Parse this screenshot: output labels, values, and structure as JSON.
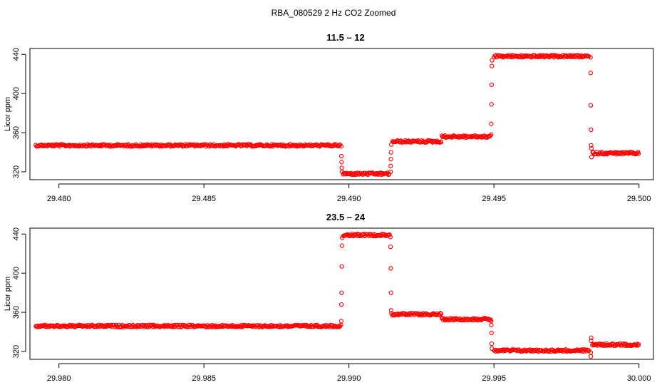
{
  "figure": {
    "title": "RBA_080529  2 Hz CO2 Zoomed"
  },
  "colors": {
    "points": "#ff0000",
    "axis": "#000000",
    "background": "#ffffff"
  },
  "chart_data": [
    {
      "type": "scatter",
      "title": "11.5 – 12",
      "xlabel": "",
      "ylabel": "Licor ppm",
      "xlim": [
        29.479,
        29.5005
      ],
      "ylim": [
        312,
        446
      ],
      "x_ticks": [
        29.48,
        29.485,
        29.49,
        29.495,
        29.5
      ],
      "x_tick_labels": [
        "29.480",
        "29.485",
        "29.490",
        "29.495",
        "29.500"
      ],
      "y_ticks": [
        320,
        360,
        400,
        440
      ],
      "y_tick_labels": [
        "320",
        "360",
        "400",
        "440"
      ],
      "grid": false,
      "marker": "open-circle",
      "series": [
        {
          "segments": [
            {
              "x": [
                29.4792,
                29.4897
              ],
              "y": 347
            },
            {
              "x": [
                29.4898,
                29.4914
              ],
              "y": 318
            },
            {
              "x": [
                29.4915,
                29.4932
              ],
              "y": 351
            },
            {
              "x": [
                29.4932,
                29.4949
              ],
              "y": 356
            },
            {
              "x": [
                29.495,
                29.4983
              ],
              "y": 438
            },
            {
              "x": [
                29.4984,
                29.5
              ],
              "y": 339
            }
          ],
          "transitions": [
            {
              "x": 29.48975,
              "y": [
                346,
                336,
                330,
                324,
                320
              ]
            },
            {
              "x": 29.49145,
              "y": [
                320,
                326,
                333,
                340,
                348
              ]
            },
            {
              "x": 29.49492,
              "y": [
                358,
                369,
                389,
                409,
                428,
                434
              ]
            },
            {
              "x": 29.49835,
              "y": [
                437,
                421,
                388,
                363,
                347,
                344,
                335
              ]
            }
          ]
        }
      ]
    },
    {
      "type": "scatter",
      "title": "23.5 – 24",
      "xlabel": "",
      "ylabel": "Licor ppm",
      "xlim": [
        29.979,
        30.0005
      ],
      "ylim": [
        312,
        446
      ],
      "x_ticks": [
        29.98,
        29.985,
        29.99,
        29.995,
        30.0
      ],
      "x_tick_labels": [
        "29.980",
        "29.985",
        "29.990",
        "29.995",
        "30.000"
      ],
      "y_ticks": [
        320,
        360,
        400,
        440
      ],
      "y_tick_labels": [
        "320",
        "360",
        "400",
        "440"
      ],
      "grid": false,
      "marker": "open-circle",
      "series": [
        {
          "segments": [
            {
              "x": [
                29.9792,
                29.9897
              ],
              "y": 346
            },
            {
              "x": [
                29.9898,
                29.9914
              ],
              "y": 439
            },
            {
              "x": [
                29.9915,
                29.9932
              ],
              "y": 358
            },
            {
              "x": [
                29.9932,
                29.9949
              ],
              "y": 353
            },
            {
              "x": [
                29.995,
                29.9983
              ],
              "y": 321
            },
            {
              "x": [
                29.9984,
                30.0
              ],
              "y": 327
            }
          ],
          "transitions": [
            {
              "x": 29.98975,
              "y": [
                347,
                351,
                368,
                380,
                407,
                428,
                436
              ]
            },
            {
              "x": 29.99145,
              "y": [
                437,
                427,
                405,
                380,
                362,
                359
              ]
            },
            {
              "x": 29.99492,
              "y": [
                351,
                347,
                339,
                328,
                323
              ]
            },
            {
              "x": 29.99835,
              "y": [
                319,
                315,
                331,
                334
              ]
            }
          ]
        }
      ]
    }
  ]
}
